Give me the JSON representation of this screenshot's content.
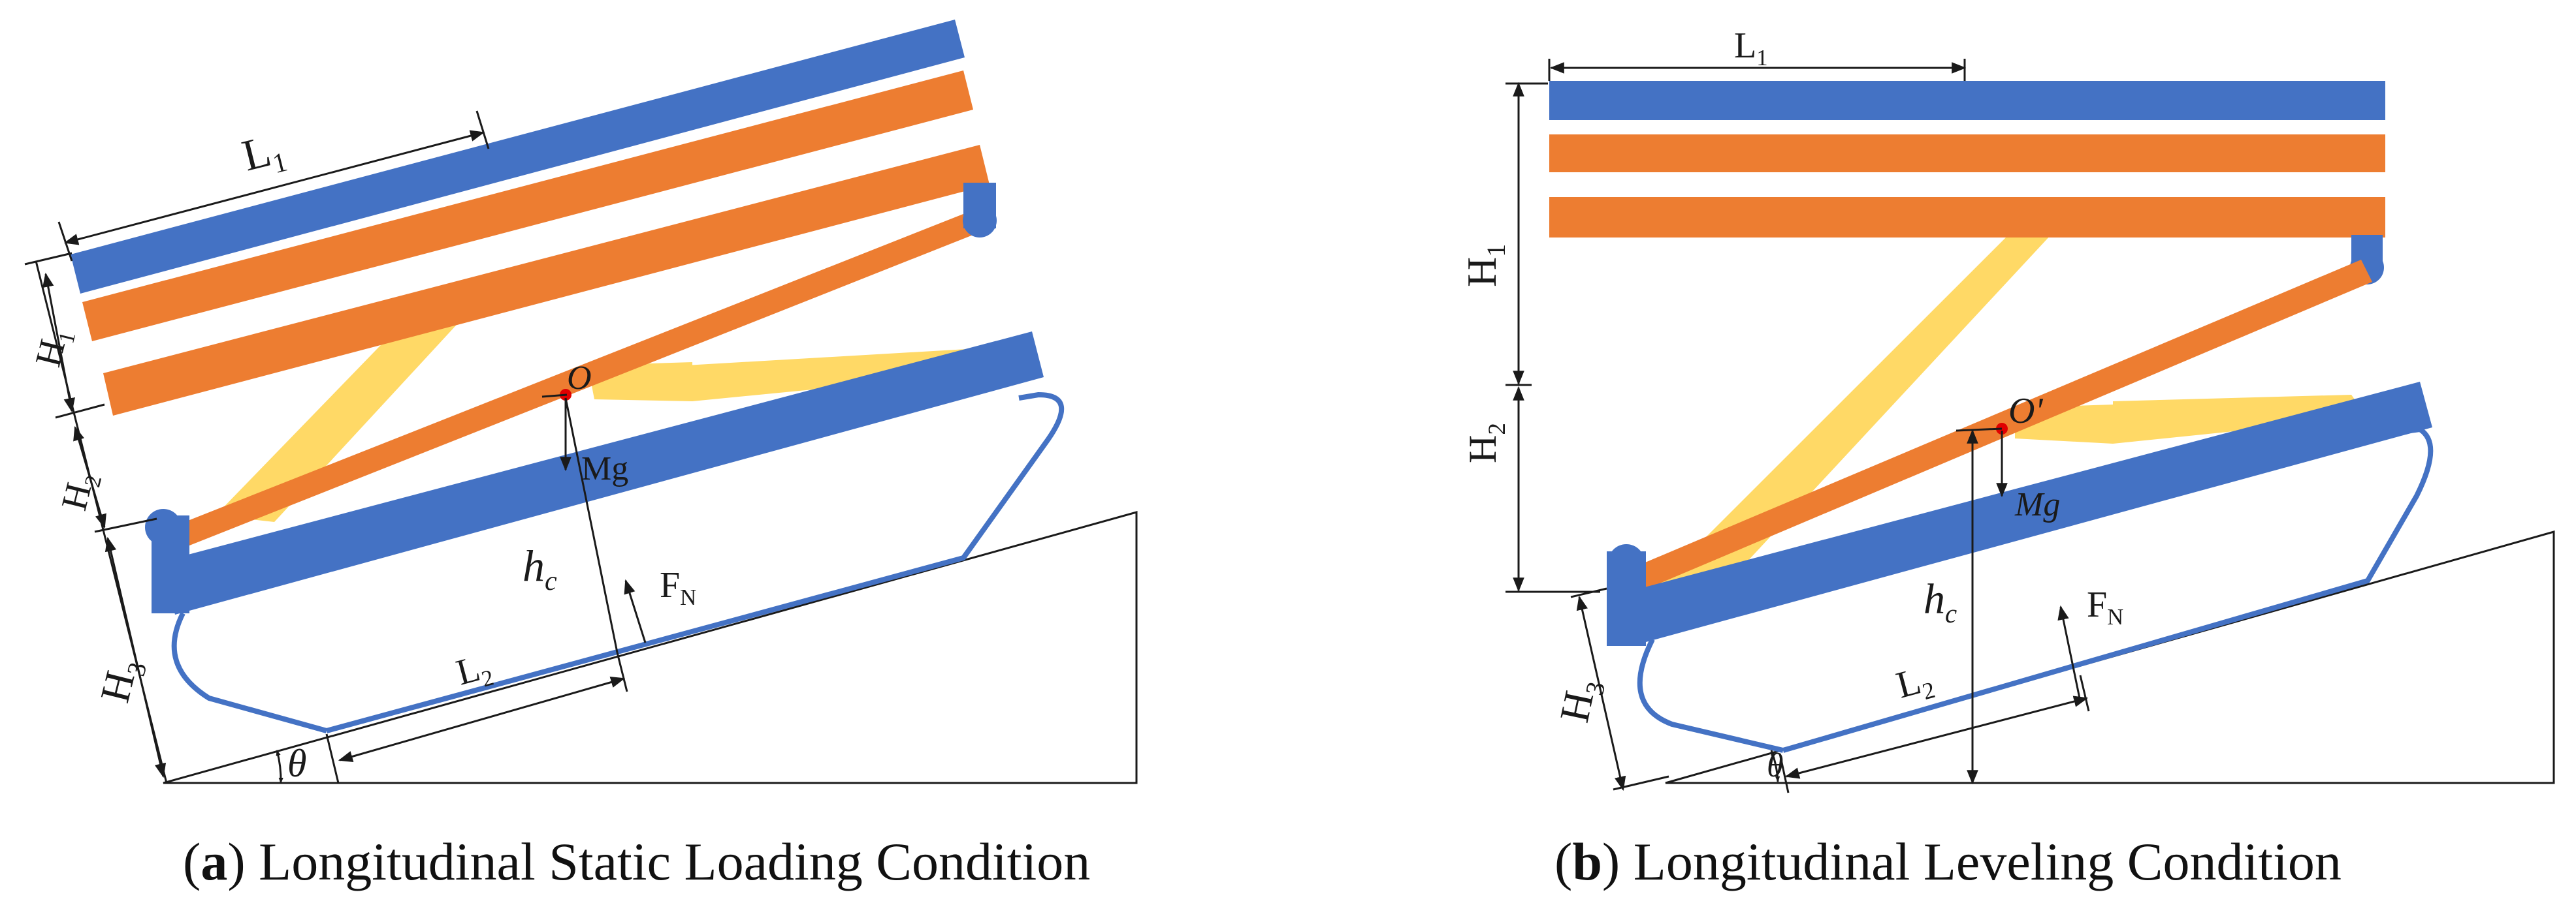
{
  "colors": {
    "blue": "#4472C4",
    "orange": "#ED7D31",
    "yellow": "#FFD966",
    "line": "#1a1a1a",
    "point": "#E00000"
  },
  "panel_a": {
    "labels": {
      "L1_main": "L",
      "L1_sub": "1",
      "H1_main": "H",
      "H1_sub": "1",
      "H2_main": "H",
      "H2_sub": "2",
      "H3_main": "H",
      "H3_sub": "3",
      "L2_main": "L",
      "L2_sub": "2",
      "hc_main": "h",
      "hc_sub": "c",
      "FN_main": "F",
      "FN_sub": "N",
      "point": "O",
      "weight": "Mg",
      "angle": "θ"
    },
    "caption": {
      "letter": "a",
      "open": "(",
      "close": ")",
      "text": " Longitudinal Static Loading Condition"
    }
  },
  "panel_b": {
    "labels": {
      "L1_main": "L",
      "L1_sub": "1",
      "H1_main": "H",
      "H1_sub": "1",
      "H2_main": "H",
      "H2_sub": "2",
      "H3_main": "H",
      "H3_sub": "3",
      "L2_main": "L",
      "L2_sub": "2",
      "hc_main": "h",
      "hc_sub": "c",
      "FN_main": "F",
      "FN_sub": "N",
      "point": "O'",
      "weight": "Mg",
      "angle": "θ"
    },
    "caption": {
      "letter": "b",
      "open": "(",
      "close": ")",
      "text": " Longitudinal Leveling Condition"
    }
  }
}
